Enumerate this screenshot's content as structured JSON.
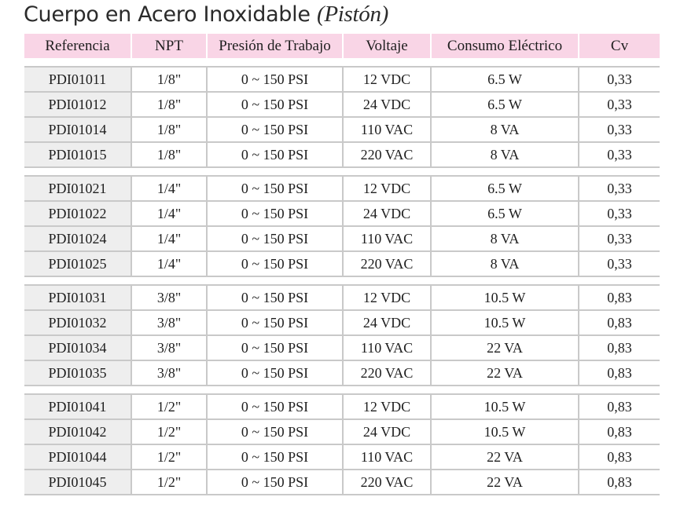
{
  "title": {
    "main": "Cuerpo en Acero Inoxidable",
    "sub": "(Pistón)"
  },
  "columns": [
    "Referencia",
    "NPT",
    "Presión de Trabajo",
    "Voltaje",
    "Consumo Eléctrico",
    "Cv"
  ],
  "groups": [
    {
      "rows": [
        [
          "PDI01011",
          "1/8\"",
          "0 ~ 150 PSI",
          "12 VDC",
          "6.5 W",
          "0,33"
        ],
        [
          "PDI01012",
          "1/8\"",
          "0 ~ 150 PSI",
          "24 VDC",
          "6.5 W",
          "0,33"
        ],
        [
          "PDI01014",
          "1/8\"",
          "0 ~ 150 PSI",
          "110 VAC",
          "8 VA",
          "0,33"
        ],
        [
          "PDI01015",
          "1/8\"",
          "0 ~ 150 PSI",
          "220 VAC",
          "8 VA",
          "0,33"
        ]
      ]
    },
    {
      "rows": [
        [
          "PDI01021",
          "1/4\"",
          "0 ~ 150 PSI",
          "12 VDC",
          "6.5 W",
          "0,33"
        ],
        [
          "PDI01022",
          "1/4\"",
          "0 ~ 150 PSI",
          "24 VDC",
          "6.5 W",
          "0,33"
        ],
        [
          "PDI01024",
          "1/4\"",
          "0 ~ 150 PSI",
          "110 VAC",
          "8 VA",
          "0,33"
        ],
        [
          "PDI01025",
          "1/4\"",
          "0 ~ 150 PSI",
          "220 VAC",
          "8 VA",
          "0,33"
        ]
      ]
    },
    {
      "rows": [
        [
          "PDI01031",
          "3/8\"",
          "0 ~ 150 PSI",
          "12 VDC",
          "10.5 W",
          "0,83"
        ],
        [
          "PDI01032",
          "3/8\"",
          "0 ~ 150 PSI",
          "24 VDC",
          "10.5 W",
          "0,83"
        ],
        [
          "PDI01034",
          "3/8\"",
          "0 ~ 150 PSI",
          "110 VAC",
          "22 VA",
          "0,83"
        ],
        [
          "PDI01035",
          "3/8\"",
          "0 ~ 150 PSI",
          "220 VAC",
          "22 VA",
          "0,83"
        ]
      ]
    },
    {
      "rows": [
        [
          "PDI01041",
          "1/2\"",
          "0 ~ 150 PSI",
          "12 VDC",
          "10.5 W",
          "0,83"
        ],
        [
          "PDI01042",
          "1/2\"",
          "0 ~ 150 PSI",
          "24 VDC",
          "10.5 W",
          "0,83"
        ],
        [
          "PDI01044",
          "1/2\"",
          "0 ~ 150 PSI",
          "110 VAC",
          "22 VA",
          "0,83"
        ],
        [
          "PDI01045",
          "1/2\"",
          "0 ~ 150 PSI",
          "220 VAC",
          "22 VA",
          "0,83"
        ]
      ]
    }
  ],
  "colors": {
    "header_bg": "#f9d5e6",
    "first_col_bg": "#eeeeee",
    "grid_line": "#c9c9c9"
  }
}
